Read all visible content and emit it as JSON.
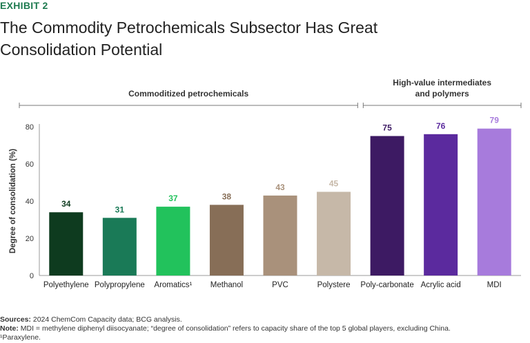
{
  "header": {
    "exhibit": "EXHIBIT 2",
    "title": "The Commodity Petrochemicals Subsector Has Great Consolidation Potential"
  },
  "chart_data": {
    "type": "bar",
    "ylabel": "Degree of consolidation (%)",
    "ylim": [
      0,
      80
    ],
    "yticks": [
      0,
      20,
      40,
      60,
      80
    ],
    "categories": [
      "Polyethylene",
      "Polypropylene",
      "Aromatics¹",
      "Methanol",
      "PVC",
      "Polystere",
      "Poly-carbonate",
      "Acrylic acid",
      "MDI"
    ],
    "values": [
      34,
      31,
      37,
      38,
      43,
      45,
      75,
      76,
      79
    ],
    "bar_colors": [
      "#0e3b1f",
      "#1a7a57",
      "#22c25c",
      "#876e57",
      "#a9917b",
      "#c6b8a8",
      "#3d1a63",
      "#5b2a9e",
      "#a77bdc"
    ],
    "label_colors": [
      "#0e3b1f",
      "#1a7a57",
      "#22c25c",
      "#876e57",
      "#a9917b",
      "#c6b8a8",
      "#3d1a63",
      "#5b2a9e",
      "#a77bdc"
    ],
    "groups": [
      {
        "label": "Commoditized petrochemicals",
        "start": 0,
        "end": 5
      },
      {
        "label_line1": "High-value intermediates",
        "label_line2": "and polymers",
        "start": 6,
        "end": 8
      }
    ],
    "grid": false
  },
  "notes": {
    "sources_label": "Sources:",
    "sources_text": " 2024 ChemCom Capacity data; BCG analysis.",
    "note_label": "Note:",
    "note_text": " MDI = methylene diphenyl diisocyanate; “degree of consolidation” refers to capacity share of the top 5 global players, excluding China.",
    "footnote": "¹Paraxylene."
  }
}
